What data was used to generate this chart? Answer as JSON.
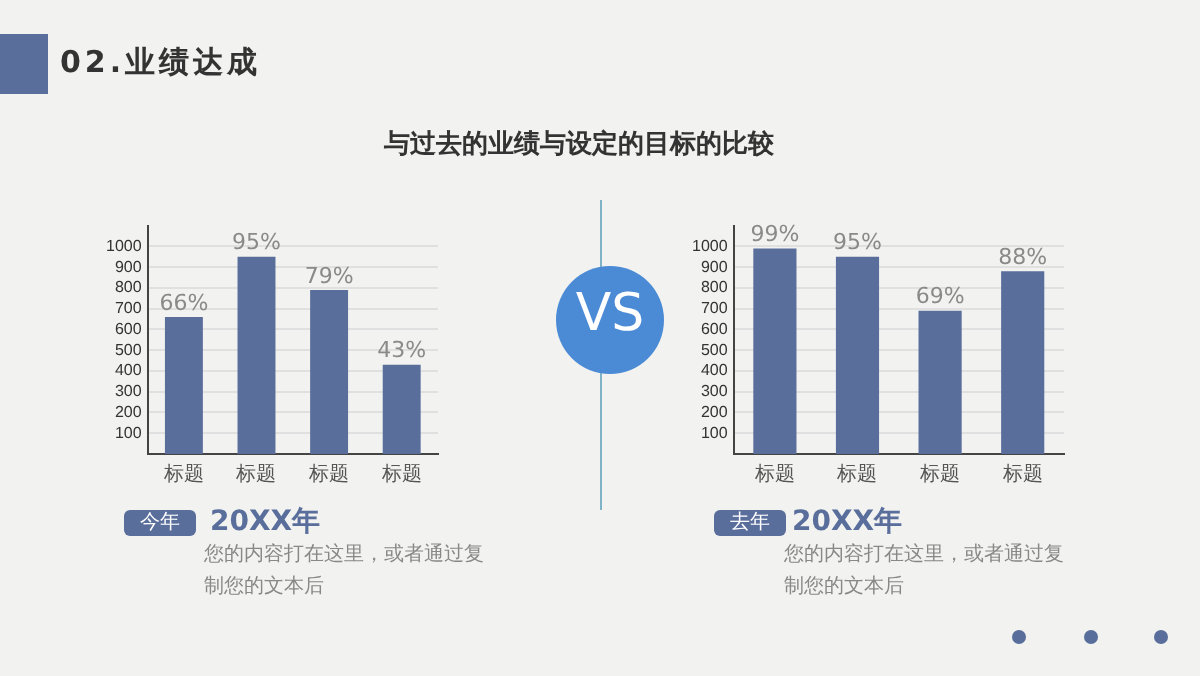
{
  "chart_data": [
    {
      "type": "bar",
      "categories": [
        "标题",
        "标题",
        "标题",
        "标题"
      ],
      "values": [
        660,
        950,
        790,
        430
      ],
      "color": "#5a6e9c",
      "ylim": [
        0,
        1100
      ],
      "yticks": [
        100,
        200,
        300,
        400,
        500,
        600,
        700,
        800,
        900,
        1000
      ],
      "grid": "y",
      "legend": false,
      "annotations": [
        "02.业绩达成",
        "与过去的业绩与设定的目标的比较",
        "VS",
        "今年",
        "20XX年",
        "您的内容打在这里，或者通过复制您的文本后",
        {
          "text": "66%",
          "y": 660
        },
        {
          "text": "95%",
          "y": 950
        },
        {
          "text": "79%",
          "y": 790
        },
        {
          "text": "43%",
          "y": 430
        }
      ]
    },
    {
      "type": "bar",
      "categories": [
        "标题",
        "标题",
        "标题",
        "标题"
      ],
      "values": [
        990,
        950,
        690,
        880
      ],
      "color": "#5a6e9c",
      "ylim": [
        0,
        1100
      ],
      "yticks": [
        100,
        200,
        300,
        400,
        500,
        600,
        700,
        800,
        900,
        1000
      ],
      "grid": "y",
      "legend": false,
      "annotations": [
        "去年",
        "20XX年",
        "您的内容打在这里，或者通过复制您的文本后",
        {
          "text": "99%",
          "y": 990
        },
        {
          "text": "95%",
          "y": 950
        },
        {
          "text": "69%",
          "y": 690
        },
        {
          "text": "88%",
          "y": 880
        }
      ]
    }
  ]
}
